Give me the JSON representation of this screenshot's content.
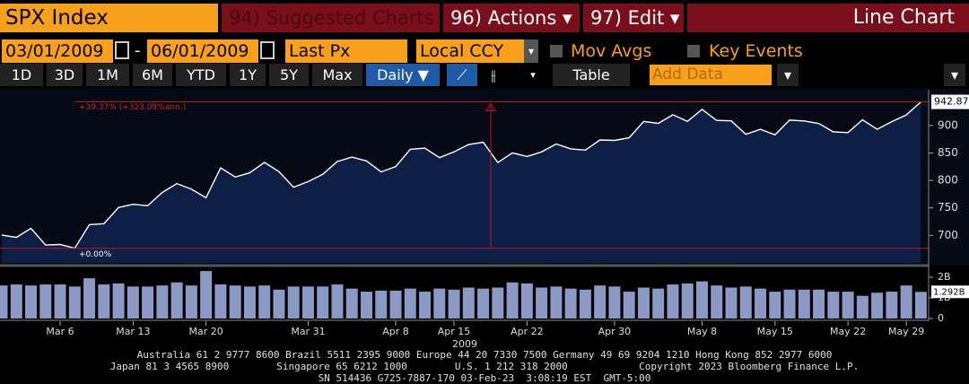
{
  "toolbar": {
    "ticker": "SPX Index",
    "suggested": "94) Suggested Charts",
    "actions": "96) Actions ▾",
    "edit": "97) Edit ▾",
    "view": "Line Chart"
  },
  "controls": {
    "start": "03/01/2009",
    "end": "06/01/2009",
    "field": "Last Px",
    "currency": "Local CCY",
    "mov_avgs": "Mov Avgs",
    "key_events": "Key Events"
  },
  "periods": [
    "1D",
    "3D",
    "1M",
    "6M",
    "YTD",
    "1Y",
    "5Y",
    "Max"
  ],
  "frequency": "Daily ▼",
  "table": "Table",
  "add_data": "Add Data",
  "chart_data": [
    {
      "type": "area",
      "color": "#ffffff",
      "annotations": [
        "+39.37% (+323.09%ann.)",
        "+0.00%"
      ],
      "values": [
        700.82,
        696.33,
        712.87,
        682.55,
        683.38,
        676.53,
        719.6,
        721.36,
        750.74,
        756.55,
        753.89,
        778.12,
        794.35,
        784.04,
        768.54,
        822.92,
        806.12,
        813.88,
        832.86,
        815.94,
        787.53,
        797.87,
        811.08,
        834.38,
        842.5,
        835.48,
        815.55,
        825.16,
        856.56,
        858.73,
        841.5,
        852.06,
        865.3,
        869.6,
        832.39,
        850.08,
        843.55,
        851.92,
        866.23,
        857.51,
        855.16,
        873.64,
        872.81,
        877.52,
        907.24,
        903.8,
        919.53,
        907.39,
        929.23,
        909.24,
        908.35,
        883.92,
        893.07,
        882.88,
        909.71,
        908.13,
        903.47,
        888.33,
        887.0,
        910.33,
        893.06,
        906.83,
        919.14,
        942.87
      ],
      "ylim": [
        650,
        965
      ],
      "yticks": [
        700,
        750,
        800,
        850,
        900
      ]
    },
    {
      "type": "bar",
      "color": "#8a9ac4",
      "x_label": "2009",
      "categories": [
        null,
        null,
        null,
        null,
        "Mar 6",
        null,
        null,
        null,
        null,
        "Mar 13",
        null,
        null,
        null,
        null,
        "Mar 20",
        null,
        null,
        null,
        null,
        null,
        null,
        "Mar 31",
        null,
        null,
        null,
        null,
        null,
        "Apr 8",
        null,
        null,
        null,
        "Apr 15",
        null,
        null,
        null,
        null,
        "Apr 22",
        null,
        null,
        null,
        null,
        null,
        "Apr 30",
        null,
        null,
        null,
        null,
        null,
        "May 8",
        null,
        null,
        null,
        null,
        "May 15",
        null,
        null,
        null,
        null,
        "May 22",
        null,
        null,
        null,
        "May 29",
        null
      ],
      "values": [
        1.6,
        1.65,
        1.6,
        1.65,
        1.65,
        1.55,
        1.95,
        1.65,
        1.7,
        1.55,
        1.55,
        1.6,
        1.75,
        1.6,
        2.3,
        1.65,
        1.6,
        1.55,
        1.6,
        1.4,
        1.55,
        1.55,
        1.55,
        1.65,
        1.45,
        1.3,
        1.35,
        1.35,
        1.45,
        1.3,
        1.45,
        1.4,
        1.5,
        1.45,
        1.5,
        1.75,
        1.7,
        1.5,
        1.55,
        1.45,
        1.4,
        1.6,
        1.55,
        1.3,
        1.5,
        1.45,
        1.65,
        1.7,
        1.8,
        1.6,
        1.5,
        1.55,
        1.45,
        1.3,
        1.4,
        1.4,
        1.4,
        1.3,
        1.3,
        1.1,
        1.25,
        1.3,
        1.6,
        1.292
      ],
      "value_labels": [
        null,
        null,
        null,
        null,
        null,
        null,
        null,
        null,
        null,
        null,
        null,
        null,
        null,
        null,
        null,
        null,
        null,
        null,
        null,
        null,
        null,
        null,
        null,
        null,
        null,
        null,
        null,
        null,
        null,
        null,
        null,
        null,
        null,
        null,
        null,
        null,
        null,
        null,
        null,
        null,
        null,
        null,
        null,
        null,
        null,
        null,
        null,
        null,
        null,
        null,
        null,
        null,
        null,
        null,
        null,
        null,
        null,
        null,
        null,
        null,
        null,
        null,
        null,
        "1.292B"
      ],
      "ylim": [
        0,
        2.5
      ],
      "yticks": [
        0,
        {
          "value": 1,
          "label": "1B"
        },
        {
          "value": 2,
          "label": "2B"
        }
      ]
    }
  ],
  "footer": [
    "Australia 61 2 9777 8600 Brazil 5511 2395 9000 Europe 44 20 7330 7500 Germany 49 69 9204 1210 Hong Kong 852 2977 6000",
    "Japan 81 3 4565 8900        Singapore 65 6212 1000        U.S. 1 212 318 2000            Copyright 2023 Bloomberg Finance L.P.",
    "SN 514436 G725-7887-170 03-Feb-23  3:08:19 EST  GMT-5:00"
  ]
}
